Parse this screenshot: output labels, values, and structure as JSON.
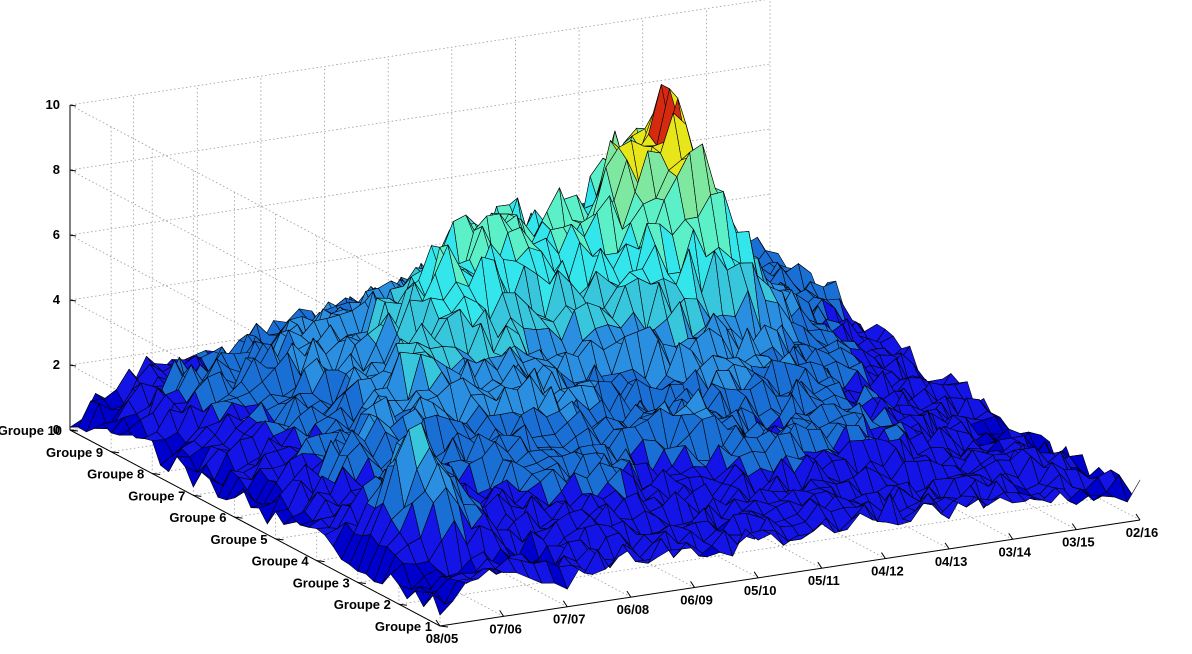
{
  "chart_data": {
    "type": "surface",
    "title": "",
    "xlabel": "",
    "ylabel": "",
    "zlabel": "",
    "grid": true,
    "zlim": [
      0,
      10
    ],
    "z_ticks": [
      "0",
      "2",
      "4",
      "6",
      "8",
      "10"
    ],
    "x_ticks": [
      "08/05",
      "07/06",
      "07/07",
      "06/08",
      "06/09",
      "05/10",
      "05/11",
      "04/12",
      "04/13",
      "03/14",
      "03/15",
      "02/16"
    ],
    "groups": [
      "Groupe 1",
      "Groupe 2",
      "Groupe 3",
      "Groupe 4",
      "Groupe 5",
      "Groupe 6",
      "Groupe 7",
      "Groupe 8",
      "Groupe 9",
      "Groupe 10"
    ],
    "colormap": [
      "#0000cd",
      "#1414e6",
      "#1a6fd4",
      "#2a8fe0",
      "#37c6dc",
      "#33e6ec",
      "#5cf0c8",
      "#7ee8a0",
      "#e6e61a",
      "#d62a10",
      "#000000"
    ],
    "series": [
      {
        "name": "Groupe 1",
        "values": [
          0.6,
          1.2,
          0.8,
          1.0,
          0.9,
          1.1,
          1.0,
          1.3,
          1.2,
          1.0,
          0.9,
          0.8
        ]
      },
      {
        "name": "Groupe 2",
        "values": [
          0.4,
          0.9,
          0.7,
          1.4,
          1.1,
          1.0,
          1.3,
          1.2,
          0.9,
          1.0,
          1.4,
          0.7
        ]
      },
      {
        "name": "Groupe 3",
        "values": [
          0.5,
          4.5,
          1.5,
          1.6,
          2.1,
          1.3,
          1.6,
          2.2,
          1.8,
          1.3,
          0.9,
          0.6
        ]
      },
      {
        "name": "Groupe 4",
        "values": [
          0.7,
          1.8,
          1.1,
          2.6,
          1.9,
          2.1,
          2.8,
          1.7,
          2.2,
          1.6,
          1.0,
          0.7
        ]
      },
      {
        "name": "Groupe 5",
        "values": [
          0.5,
          2.1,
          3.1,
          2.4,
          3.2,
          2.5,
          2.1,
          2.9,
          2.6,
          1.8,
          1.2,
          0.9
        ]
      },
      {
        "name": "Groupe 6",
        "values": [
          0.6,
          1.6,
          2.4,
          4.2,
          3.6,
          2.8,
          3.4,
          3.9,
          3.1,
          2.4,
          1.4,
          1.0
        ]
      },
      {
        "name": "Groupe 7",
        "values": [
          0.5,
          1.7,
          2.2,
          3.1,
          6.3,
          5.0,
          4.6,
          5.9,
          7.8,
          3.6,
          1.8,
          1.2
        ]
      },
      {
        "name": "Groupe 8",
        "values": [
          0.6,
          2.2,
          2.8,
          3.3,
          4.1,
          6.3,
          5.6,
          6.4,
          9.0,
          4.0,
          2.1,
          1.6
        ]
      },
      {
        "name": "Groupe 9",
        "values": [
          0.4,
          1.9,
          2.1,
          2.6,
          3.0,
          3.6,
          5.0,
          4.2,
          6.1,
          3.3,
          2.2,
          2.0
        ]
      },
      {
        "name": "Groupe 10",
        "values": [
          0.3,
          1.4,
          1.3,
          2.0,
          2.2,
          2.5,
          3.0,
          3.3,
          2.9,
          2.6,
          2.4,
          2.0
        ]
      }
    ]
  }
}
